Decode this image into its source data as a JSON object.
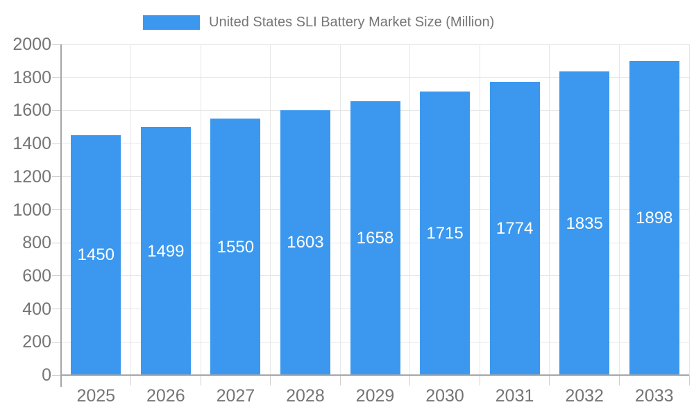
{
  "legend": {
    "label": "United States SLI Battery Market Size (Million)"
  },
  "chart_data": {
    "type": "bar",
    "title": "United States SLI Battery Market Size (Million)",
    "xlabel": "",
    "ylabel": "",
    "categories": [
      "2025",
      "2026",
      "2027",
      "2028",
      "2029",
      "2030",
      "2031",
      "2032",
      "2033"
    ],
    "values": [
      1450,
      1499,
      1550,
      1603,
      1658,
      1715,
      1774,
      1835,
      1898
    ],
    "ylim": [
      0,
      2000
    ],
    "y_tick_step": 200,
    "y_tick_labels": [
      "0",
      "200",
      "400",
      "600",
      "800",
      "1000",
      "1200",
      "1400",
      "1600",
      "1800",
      "2000"
    ],
    "grid": true,
    "legend_position": "top-center",
    "colors": {
      "bar": "#3b98ee",
      "value_label_text": "#ffffff",
      "axis_text": "#757575",
      "grid_line": "#e6e6e6",
      "axis_line": "#a6a6a6",
      "tick_line": "#cfcfcf",
      "background": "#ffffff"
    }
  }
}
